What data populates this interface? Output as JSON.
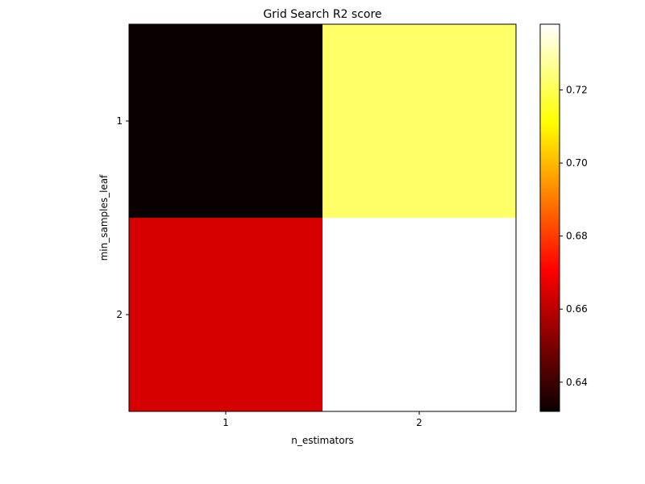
{
  "chart_data": {
    "type": "heatmap",
    "title": "Grid Search R2 score",
    "xlabel": "n_estimators",
    "ylabel": "min_samples_leaf",
    "x_categories": [
      "1",
      "2"
    ],
    "y_categories": [
      "1",
      "2"
    ],
    "values": [
      [
        0.632,
        0.722
      ],
      [
        0.663,
        0.738
      ]
    ],
    "colormap": "hot",
    "colorbar": {
      "vmin": 0.632,
      "vmax": 0.738,
      "ticks": [
        0.64,
        0.66,
        0.68,
        0.7,
        0.72
      ],
      "tick_labels": [
        "0.64",
        "0.66",
        "0.68",
        "0.70",
        "0.72"
      ]
    },
    "grid": false
  }
}
